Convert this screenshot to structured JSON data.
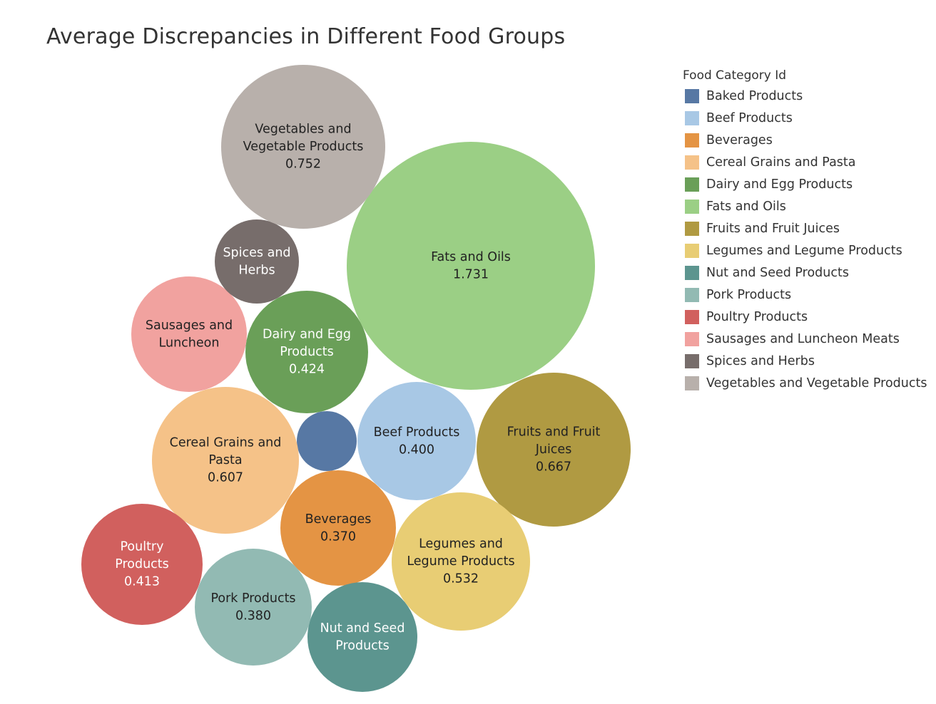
{
  "chart_data": {
    "type": "bubble",
    "title": "Average Discrepancies in Different Food Groups",
    "legend": {
      "title": "Food Category Id",
      "placement": "right"
    },
    "categories": [
      {
        "name": "Baked Products",
        "color": "#5778a4",
        "label_lines": [],
        "value_label": ""
      },
      {
        "name": "Beef Products",
        "color": "#a8c8e5",
        "label_lines": [
          "Beef Products"
        ],
        "value_label": "0.400"
      },
      {
        "name": "Beverages",
        "color": "#e49444",
        "label_lines": [
          "Beverages"
        ],
        "value_label": "0.370"
      },
      {
        "name": "Cereal Grains and Pasta",
        "color": "#f5c288",
        "label_lines": [
          "Cereal Grains and",
          "Pasta"
        ],
        "value_label": "0.607"
      },
      {
        "name": "Dairy and Egg Products",
        "color": "#6a9f58",
        "label_lines": [
          "Dairy and Egg",
          "Products"
        ],
        "value_label": "0.424"
      },
      {
        "name": "Fats and Oils",
        "color": "#9bcf85",
        "label_lines": [
          "Fats and Oils"
        ],
        "value_label": "1.731"
      },
      {
        "name": "Fruits and Fruit Juices",
        "color": "#b09a42",
        "label_lines": [
          "Fruits and Fruit",
          "Juices"
        ],
        "value_label": "0.667"
      },
      {
        "name": "Legumes and Legume Products",
        "color": "#e8cd74",
        "label_lines": [
          "Legumes and",
          "Legume Products"
        ],
        "value_label": "0.532"
      },
      {
        "name": "Nut and Seed Products",
        "color": "#5c958f",
        "label_lines": [
          "Nut and Seed",
          "Products"
        ],
        "value_label": ""
      },
      {
        "name": "Pork Products",
        "color": "#92bab3",
        "label_lines": [
          "Pork Products"
        ],
        "value_label": "0.380"
      },
      {
        "name": "Poultry Products",
        "color": "#d1605e",
        "label_lines": [
          "Poultry",
          "Products"
        ],
        "value_label": "0.413"
      },
      {
        "name": "Sausages and Luncheon Meats",
        "color": "#f1a29f",
        "label_lines": [
          "Sausages and",
          "Luncheon"
        ],
        "value_label": ""
      },
      {
        "name": "Spices and Herbs",
        "color": "#776d6b",
        "label_lines": [
          "Spices and",
          "Herbs"
        ],
        "value_label": ""
      },
      {
        "name": "Vegetables and Vegetable Products",
        "color": "#b8b0ab",
        "label_lines": [
          "Vegetables and",
          "Vegetable Products"
        ],
        "value_label": "0.752"
      }
    ]
  }
}
